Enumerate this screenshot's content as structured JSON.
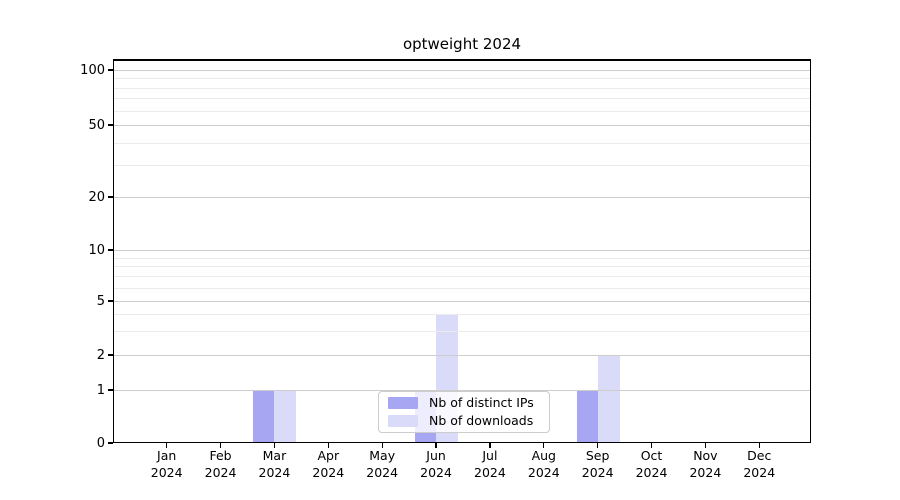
{
  "chart_data": {
    "type": "bar",
    "title": "optweight 2024",
    "x_axis": {
      "categories": [
        "Jan",
        "Feb",
        "Mar",
        "Apr",
        "May",
        "Jun",
        "Jul",
        "Aug",
        "Sep",
        "Oct",
        "Nov",
        "Dec"
      ],
      "year_label": "2024"
    },
    "y_axis": {
      "scale": "symlog",
      "ticks": [
        0,
        1,
        2,
        5,
        10,
        20,
        50,
        100
      ],
      "minor_ticks": [
        3,
        4,
        6,
        7,
        8,
        9,
        30,
        40,
        60,
        70,
        80,
        90
      ],
      "range": [
        0,
        115
      ]
    },
    "series": [
      {
        "name": "Nb of distinct IPs",
        "color": "#a6a6f2",
        "values": [
          0,
          0,
          1,
          0,
          0,
          1,
          0,
          0,
          1,
          0,
          0,
          0
        ]
      },
      {
        "name": "Nb of downloads",
        "color": "#dadaf9",
        "values": [
          0,
          0,
          1,
          0,
          0,
          4,
          0,
          0,
          2,
          0,
          0,
          0
        ]
      }
    ],
    "legend": {
      "position": "bottom-center"
    },
    "grid": true
  }
}
